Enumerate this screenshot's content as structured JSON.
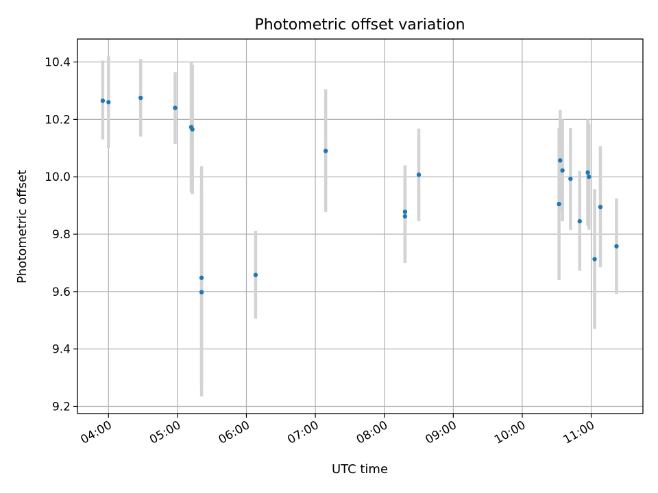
{
  "chart_data": {
    "type": "scatter",
    "title": "Photometric offset variation",
    "xlabel": "UTC time",
    "ylabel": "Photometric offset",
    "x_unit": "UTC hh:mm",
    "xlim": [
      "03:33",
      "11:45"
    ],
    "ylim": [
      9.175,
      10.48
    ],
    "x_ticks": [
      "04:00",
      "05:00",
      "06:00",
      "07:00",
      "08:00",
      "09:00",
      "10:00",
      "11:00"
    ],
    "y_ticks": [
      9.2,
      9.4,
      9.6,
      9.8,
      10.0,
      10.2,
      10.4
    ],
    "y_tick_labels": [
      "9.2",
      "9.4",
      "9.6",
      "9.8",
      "10.0",
      "10.2",
      "10.4"
    ],
    "grid": true,
    "legend": "none",
    "marker_color": "#1f77b4",
    "errorbar_color": "#d3d3d3",
    "series": [
      {
        "points": [
          {
            "x": "03:55",
            "y": 10.265,
            "err_low": 10.13,
            "err_high": 10.405
          },
          {
            "x": "04:00",
            "y": 10.26,
            "err_low": 10.1,
            "err_high": 10.42
          },
          {
            "x": "04:28",
            "y": 10.275,
            "err_low": 10.14,
            "err_high": 10.41
          },
          {
            "x": "04:58",
            "y": 10.24,
            "err_low": 10.115,
            "err_high": 10.365
          },
          {
            "x": "05:12",
            "y": 10.173,
            "err_low": 9.945,
            "err_high": 10.4
          },
          {
            "x": "05:13",
            "y": 10.165,
            "err_low": 9.94,
            "err_high": 10.39
          },
          {
            "x": "05:21",
            "y": 9.648,
            "err_low": 9.285,
            "err_high": 10.037
          },
          {
            "x": "05:21",
            "y": 9.598,
            "err_low": 9.235,
            "err_high": 9.96
          },
          {
            "x": "06:08",
            "y": 9.658,
            "err_low": 9.505,
            "err_high": 9.812
          },
          {
            "x": "07:09",
            "y": 10.09,
            "err_low": 9.877,
            "err_high": 10.305
          },
          {
            "x": "08:18",
            "y": 9.878,
            "err_low": 9.715,
            "err_high": 10.04
          },
          {
            "x": "08:18",
            "y": 9.862,
            "err_low": 9.7,
            "err_high": 10.024
          },
          {
            "x": "08:30",
            "y": 10.007,
            "err_low": 9.845,
            "err_high": 10.168
          },
          {
            "x": "10:32",
            "y": 9.905,
            "err_low": 9.64,
            "err_high": 10.17
          },
          {
            "x": "10:33",
            "y": 10.057,
            "err_low": 9.88,
            "err_high": 10.233
          },
          {
            "x": "10:35",
            "y": 10.022,
            "err_low": 9.845,
            "err_high": 10.2
          },
          {
            "x": "10:42",
            "y": 9.993,
            "err_low": 9.815,
            "err_high": 10.17
          },
          {
            "x": "10:50",
            "y": 9.845,
            "err_low": 9.672,
            "err_high": 10.02
          },
          {
            "x": "10:57",
            "y": 10.015,
            "err_low": 9.83,
            "err_high": 10.2
          },
          {
            "x": "10:58",
            "y": 10.0,
            "err_low": 9.815,
            "err_high": 10.185
          },
          {
            "x": "11:03",
            "y": 9.713,
            "err_low": 9.47,
            "err_high": 9.957
          },
          {
            "x": "11:08",
            "y": 9.895,
            "err_low": 9.685,
            "err_high": 10.107
          },
          {
            "x": "11:22",
            "y": 9.758,
            "err_low": 9.592,
            "err_high": 9.925
          }
        ]
      }
    ]
  }
}
